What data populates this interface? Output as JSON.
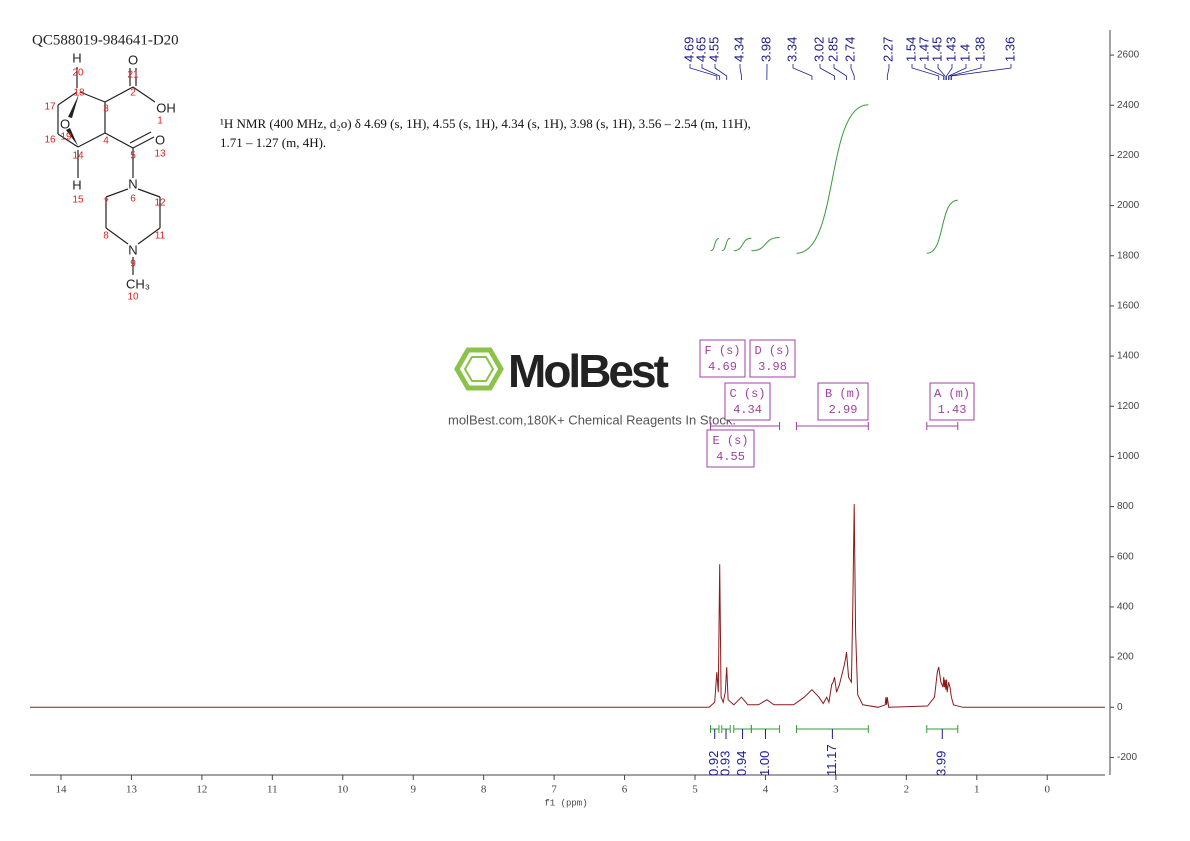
{
  "title": "QC588019-984641-D20",
  "description": "¹H NMR (400 MHz, d₂o) δ 4.69 (s, 1H), 4.55 (s, 1H), 4.34 (s, 1H), 3.98 (s, 1H), 3.56 – 2.54 (m, 11H), 1.71 – 1.27 (m, 4H).",
  "molecule": {
    "labels": [
      "H",
      "20",
      "O",
      "21",
      "18",
      "2",
      "OH",
      "1",
      "17",
      "3",
      "O",
      "19",
      "16",
      "4",
      "O",
      "13",
      "14",
      "5",
      "H",
      "15",
      "N",
      "6",
      "7",
      "12",
      "8",
      "11",
      "N",
      "9",
      "CH₃",
      "10"
    ]
  },
  "watermark": {
    "brand": "MolBest",
    "tagline": "molBest.com,180K+ Chemical Reagents In Stock."
  },
  "chart_data": {
    "type": "line",
    "x_label": "f1 (ppm)",
    "x": [
      14.44,
      4.8,
      4.72,
      4.69,
      4.67,
      4.65,
      4.63,
      4.6,
      4.57,
      4.55,
      4.53,
      4.45,
      4.34,
      4.25,
      4.1,
      3.98,
      3.88,
      3.6,
      3.45,
      3.34,
      3.24,
      3.18,
      3.13,
      3.1,
      3.06,
      3.04,
      3.02,
      2.99,
      2.95,
      2.88,
      2.86,
      2.85,
      2.82,
      2.78,
      2.76,
      2.74,
      2.72,
      2.69,
      2.62,
      2.4,
      2.3,
      2.29,
      2.28,
      2.27,
      2.25,
      1.7,
      1.6,
      1.56,
      1.54,
      1.51,
      1.48,
      1.47,
      1.46,
      1.45,
      1.44,
      1.43,
      1.42,
      1.4,
      1.38,
      1.36,
      1.33,
      1.2,
      -0.82
    ],
    "values": [
      0,
      0,
      20,
      140,
      60,
      570,
      40,
      20,
      60,
      160,
      30,
      10,
      40,
      10,
      10,
      30,
      10,
      10,
      40,
      70,
      40,
      15,
      40,
      20,
      90,
      100,
      120,
      60,
      90,
      170,
      200,
      220,
      120,
      100,
      400,
      810,
      300,
      50,
      10,
      0,
      10,
      40,
      10,
      40,
      0,
      5,
      40,
      140,
      160,
      100,
      80,
      120,
      80,
      110,
      70,
      110,
      60,
      100,
      80,
      40,
      10,
      0,
      0
    ],
    "color": "#8b1a1a",
    "xlim": [
      14.44,
      -0.82
    ],
    "xticks": [
      14,
      13,
      12,
      11,
      10,
      9,
      8,
      7,
      6,
      5,
      4,
      3,
      2,
      1,
      0
    ],
    "ylim": [
      -270,
      2700
    ],
    "yticks": [
      -200,
      0,
      200,
      400,
      600,
      800,
      1000,
      1200,
      1400,
      1600,
      1800,
      2000,
      2200,
      2400,
      2600
    ],
    "peak_labels": [
      4.69,
      4.65,
      4.55,
      4.34,
      3.98,
      3.34,
      3.02,
      2.85,
      2.74,
      2.27,
      1.54,
      1.47,
      1.45,
      1.43,
      1.4,
      1.38,
      1.36
    ],
    "integrals": {
      "ranges": [
        [
          4.78,
          4.66
        ],
        [
          4.62,
          4.5
        ],
        [
          4.45,
          4.2
        ],
        [
          4.2,
          3.8
        ],
        [
          3.56,
          2.54
        ],
        [
          1.71,
          1.27
        ]
      ],
      "values": [
        0.92,
        0.93,
        0.94,
        1,
        11.17,
        3.99
      ],
      "value_labels": [
        "0.92",
        "0.93",
        "0.94",
        "1.00",
        "11.17",
        "3.99"
      ]
    },
    "multiplets": {
      "names": [
        "F (s)",
        "D (s)",
        "C (s)",
        "B (m)",
        "A (m)",
        "E (s)"
      ],
      "shifts": [
        4.69,
        3.98,
        4.34,
        2.99,
        1.43,
        4.55
      ]
    },
    "multiplet_ranges": [
      [
        4.78,
        3.8
      ],
      [
        3.56,
        2.54
      ],
      [
        1.71,
        1.27
      ]
    ]
  }
}
